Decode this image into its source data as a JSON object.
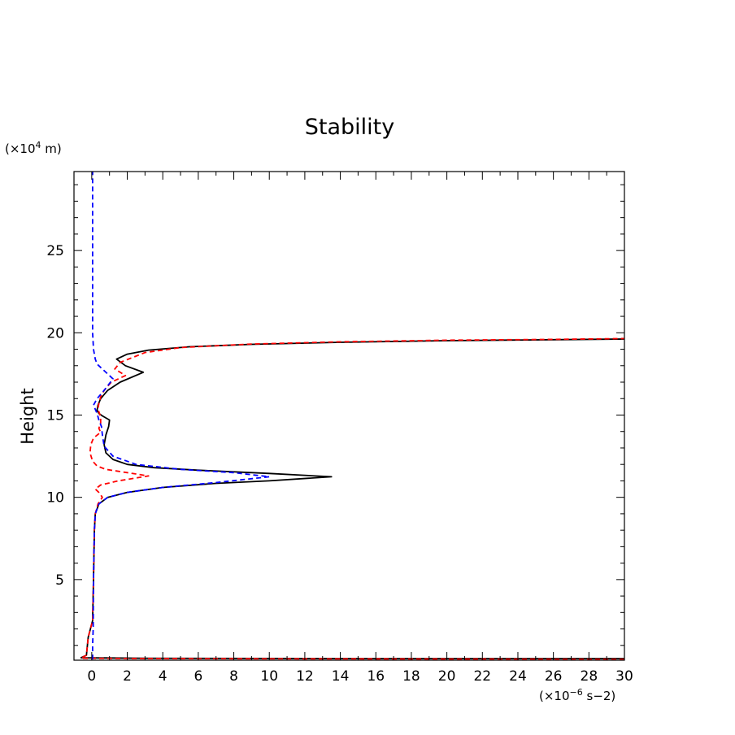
{
  "chart_data": {
    "type": "line",
    "title": "Stability",
    "ylabel": "Height",
    "xlabel": "",
    "y_unit": {
      "prefix": "(×10",
      "exp": "4",
      "suffix": " m)"
    },
    "x_unit": {
      "prefix": "(×10",
      "exp": "−6",
      "suffix": " s−2)"
    },
    "xlim": [
      -1,
      30
    ],
    "ylim": [
      0.1,
      29.8
    ],
    "x_ticks": [
      "0",
      "2",
      "4",
      "6",
      "8",
      "10",
      "12",
      "14",
      "16",
      "18",
      "20",
      "22",
      "24",
      "26",
      "28",
      "30"
    ],
    "x_tick_values": [
      0,
      2,
      4,
      6,
      8,
      10,
      12,
      14,
      16,
      18,
      20,
      22,
      24,
      26,
      28,
      30
    ],
    "y_ticks": [
      "5",
      "10",
      "15",
      "20",
      "25"
    ],
    "y_tick_values": [
      5,
      10,
      15,
      20,
      25
    ],
    "grid": false,
    "series": [
      {
        "color": "#000000",
        "dash": "solid",
        "points": [
          [
            30,
            0.2
          ],
          [
            15,
            0.2
          ],
          [
            3,
            0.22
          ],
          [
            -0.6,
            0.25
          ],
          [
            -0.3,
            0.4
          ],
          [
            -0.2,
            1.5
          ],
          [
            0.05,
            2.5
          ],
          [
            0.1,
            5
          ],
          [
            0.15,
            8
          ],
          [
            0.2,
            9
          ],
          [
            0.4,
            9.6
          ],
          [
            0.9,
            10
          ],
          [
            2,
            10.3
          ],
          [
            4,
            10.6
          ],
          [
            7,
            10.85
          ],
          [
            10,
            11.0
          ],
          [
            13.5,
            11.25
          ],
          [
            10,
            11.45
          ],
          [
            6,
            11.65
          ],
          [
            3.5,
            11.8
          ],
          [
            2,
            12.0
          ],
          [
            1.2,
            12.3
          ],
          [
            0.8,
            12.7
          ],
          [
            0.7,
            13.2
          ],
          [
            0.8,
            13.8
          ],
          [
            0.95,
            14.3
          ],
          [
            1.0,
            14.7
          ],
          [
            0.6,
            14.95
          ],
          [
            0.4,
            15.1
          ],
          [
            0.3,
            15.3
          ],
          [
            0.35,
            15.6
          ],
          [
            0.5,
            16.0
          ],
          [
            0.9,
            16.5
          ],
          [
            1.6,
            17.0
          ],
          [
            2.9,
            17.6
          ],
          [
            1.9,
            18.0
          ],
          [
            1.4,
            18.4
          ],
          [
            2.0,
            18.7
          ],
          [
            3.2,
            18.95
          ],
          [
            5.5,
            19.15
          ],
          [
            9,
            19.3
          ],
          [
            14,
            19.42
          ],
          [
            20,
            19.52
          ],
          [
            26,
            19.58
          ],
          [
            30,
            19.62
          ]
        ]
      },
      {
        "color": "#ff0000",
        "dash": "dashed",
        "points": [
          [
            30,
            0.15
          ],
          [
            15,
            0.18
          ],
          [
            3,
            0.2
          ],
          [
            -0.6,
            0.22
          ],
          [
            -0.3,
            0.4
          ],
          [
            -0.2,
            1.5
          ],
          [
            0.05,
            2.5
          ],
          [
            0.1,
            5
          ],
          [
            0.15,
            8
          ],
          [
            0.2,
            9
          ],
          [
            0.35,
            9.6
          ],
          [
            0.6,
            10.0
          ],
          [
            0.4,
            10.3
          ],
          [
            0.2,
            10.5
          ],
          [
            0.5,
            10.75
          ],
          [
            1.5,
            11.0
          ],
          [
            3.2,
            11.3
          ],
          [
            2,
            11.5
          ],
          [
            0.8,
            11.7
          ],
          [
            0.3,
            11.9
          ],
          [
            0.05,
            12.2
          ],
          [
            -0.1,
            12.7
          ],
          [
            -0.05,
            13.2
          ],
          [
            0.1,
            13.6
          ],
          [
            0.5,
            13.95
          ],
          [
            0.4,
            14.2
          ],
          [
            0.5,
            14.5
          ],
          [
            0.5,
            14.9
          ],
          [
            0.4,
            15.2
          ],
          [
            0.35,
            15.4
          ],
          [
            0.4,
            15.7
          ],
          [
            0.5,
            16.1
          ],
          [
            0.7,
            16.5
          ],
          [
            1.1,
            17.0
          ],
          [
            1.9,
            17.4
          ],
          [
            1.3,
            17.8
          ],
          [
            1.6,
            18.2
          ],
          [
            2.3,
            18.5
          ],
          [
            3,
            18.8
          ],
          [
            5,
            19.1
          ],
          [
            9,
            19.32
          ],
          [
            14,
            19.45
          ],
          [
            20,
            19.55
          ],
          [
            26,
            19.6
          ],
          [
            30,
            19.65
          ]
        ]
      },
      {
        "color": "#0000ff",
        "dash": "dashed",
        "points": [
          [
            0.05,
            0.15
          ],
          [
            0.05,
            1
          ],
          [
            0.08,
            2
          ],
          [
            0.1,
            5
          ],
          [
            0.15,
            8
          ],
          [
            0.2,
            9
          ],
          [
            0.4,
            9.6
          ],
          [
            0.9,
            10.0
          ],
          [
            2,
            10.3
          ],
          [
            4,
            10.6
          ],
          [
            7,
            10.9
          ],
          [
            10,
            11.25
          ],
          [
            8,
            11.5
          ],
          [
            5,
            11.7
          ],
          [
            2.5,
            12.0
          ],
          [
            1.2,
            12.5
          ],
          [
            0.7,
            13.1
          ],
          [
            0.6,
            13.8
          ],
          [
            0.55,
            14.3
          ],
          [
            0.4,
            14.7
          ],
          [
            0.3,
            15.1
          ],
          [
            0.1,
            15.6
          ],
          [
            0.3,
            16.0
          ],
          [
            0.7,
            16.5
          ],
          [
            1.2,
            17.2
          ],
          [
            0.7,
            17.7
          ],
          [
            0.3,
            18.1
          ],
          [
            0.2,
            18.4
          ],
          [
            0.1,
            19
          ],
          [
            0.05,
            20
          ],
          [
            0.05,
            25
          ],
          [
            0.05,
            29.8
          ]
        ]
      }
    ]
  }
}
